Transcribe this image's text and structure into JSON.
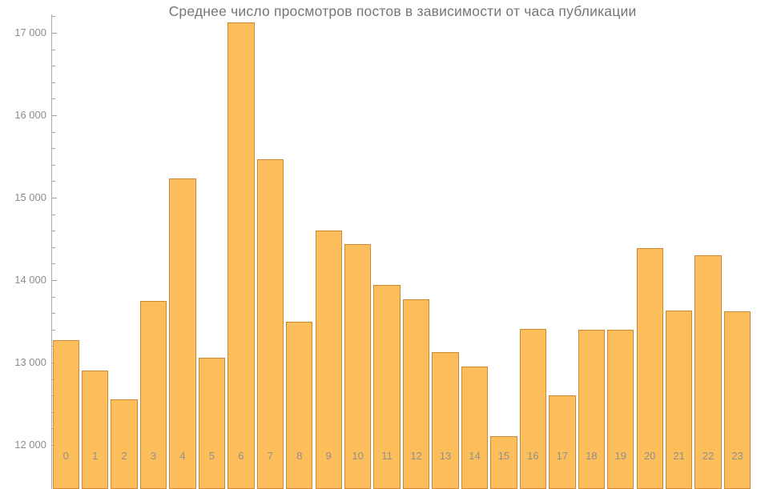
{
  "title": "Среднее число просмотров постов в зависимости от часа публикации",
  "chart_data": {
    "type": "bar",
    "title": "Среднее число просмотров постов в зависимости от часа публикации",
    "xlabel": "",
    "ylabel": "",
    "categories": [
      "0",
      "1",
      "2",
      "3",
      "4",
      "5",
      "6",
      "7",
      "8",
      "9",
      "10",
      "11",
      "12",
      "13",
      "14",
      "15",
      "16",
      "17",
      "18",
      "19",
      "20",
      "21",
      "22",
      "23"
    ],
    "values": [
      13270,
      12900,
      12550,
      13750,
      15230,
      13060,
      17130,
      15470,
      13500,
      14600,
      14440,
      13940,
      13770,
      13130,
      12950,
      12110,
      13410,
      12600,
      13400,
      13400,
      14390,
      13630,
      14300,
      13620
    ],
    "ylim": [
      12000,
      17200
    ],
    "yticks": [
      12000,
      13000,
      14000,
      15000,
      16000,
      17000
    ],
    "ytick_labels": [
      "12 000",
      "13 000",
      "14 000",
      "15 000",
      "16 000",
      "17 000"
    ],
    "minor_tick_step": 200,
    "grid": "off",
    "legend": "none",
    "colors": {
      "bar_fill": "#fcbd5b",
      "bar_edge": "#cf8830",
      "axis": "#ababab",
      "tick": "#9e9e9e",
      "tick_label": "#8c8c8c",
      "category_label": "#8f8f8f",
      "title": "#767676",
      "background": "#ffffff"
    }
  }
}
